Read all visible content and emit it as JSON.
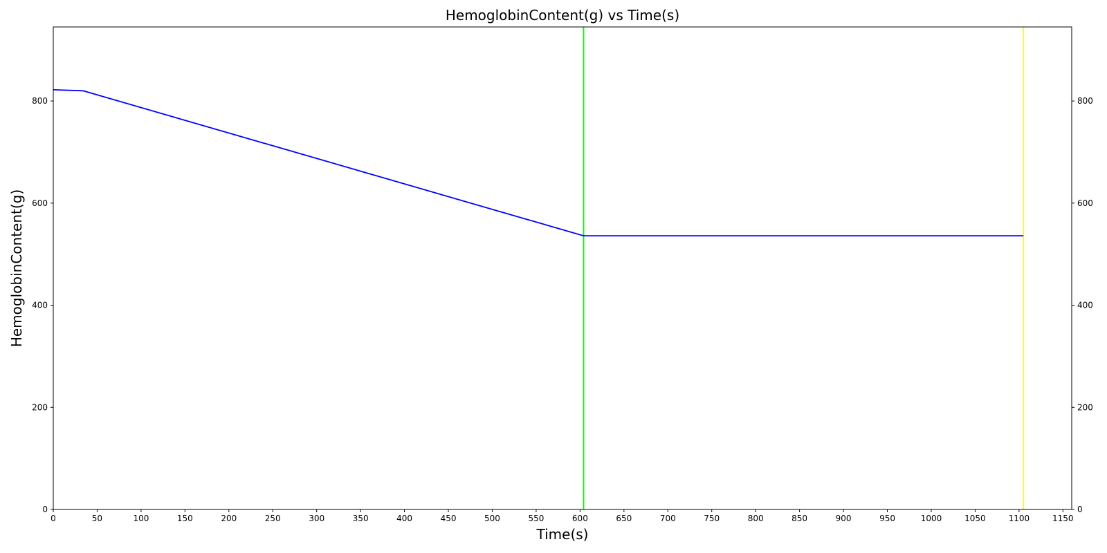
{
  "chart_data": {
    "type": "line",
    "title": "HemoglobinContent(g) vs Time(s)",
    "xlabel": "Time(s)",
    "ylabel": "HemoglobinContent(g)",
    "xlim": [
      0,
      1160
    ],
    "ylim": [
      0,
      945
    ],
    "xticks": [
      0,
      50,
      100,
      150,
      200,
      250,
      300,
      350,
      400,
      450,
      500,
      550,
      600,
      650,
      700,
      750,
      800,
      850,
      900,
      950,
      1000,
      1050,
      1100,
      1150
    ],
    "yticks": [
      0,
      200,
      400,
      600,
      800
    ],
    "right_axis_ticks": true,
    "grid": false,
    "series": [
      {
        "color": "#0000ff",
        "x": [
          0,
          34,
          604,
          1105
        ],
        "y": [
          822,
          820,
          536,
          536
        ]
      }
    ],
    "vlines": [
      {
        "x": 604,
        "color": "#00ff00"
      },
      {
        "x": 1105,
        "color": "#ffff00"
      }
    ]
  }
}
